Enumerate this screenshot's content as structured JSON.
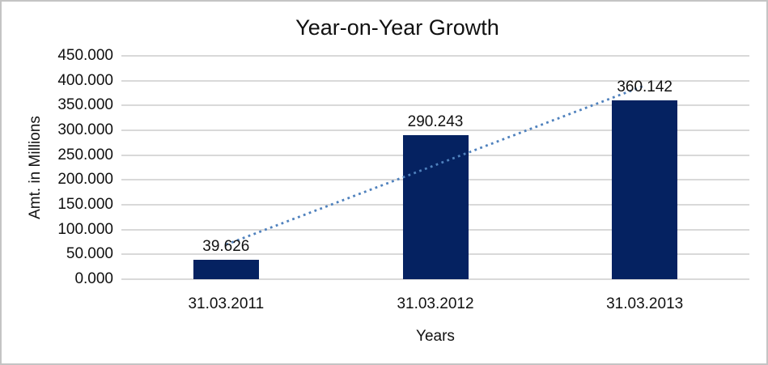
{
  "chart_data": {
    "type": "bar",
    "title": "Year-on-Year Growth",
    "xlabel": "Years",
    "ylabel": "Amt. in Millions",
    "categories": [
      "31.03.2011",
      "31.03.2012",
      "31.03.2013"
    ],
    "values": [
      39.626,
      290.243,
      360.142
    ],
    "data_labels": [
      "39.626",
      "290.243",
      "360.142"
    ],
    "ylim": [
      0,
      450
    ],
    "ytick_interval": 50,
    "ytick_labels": [
      "0.000",
      "50.000",
      "100.000",
      "150.000",
      "200.000",
      "250.000",
      "300.000",
      "350.000",
      "400.000",
      "450.000"
    ],
    "grid": true,
    "legend": "none",
    "trendline": {
      "type": "linear",
      "style": "dotted"
    },
    "colors": {
      "bar": "#052261",
      "trendline": "#4F81BD",
      "gridline": "#D9D9D9",
      "text": "#111111",
      "frame_border": "#C4C4C4",
      "background": "#FFFFFF"
    }
  }
}
